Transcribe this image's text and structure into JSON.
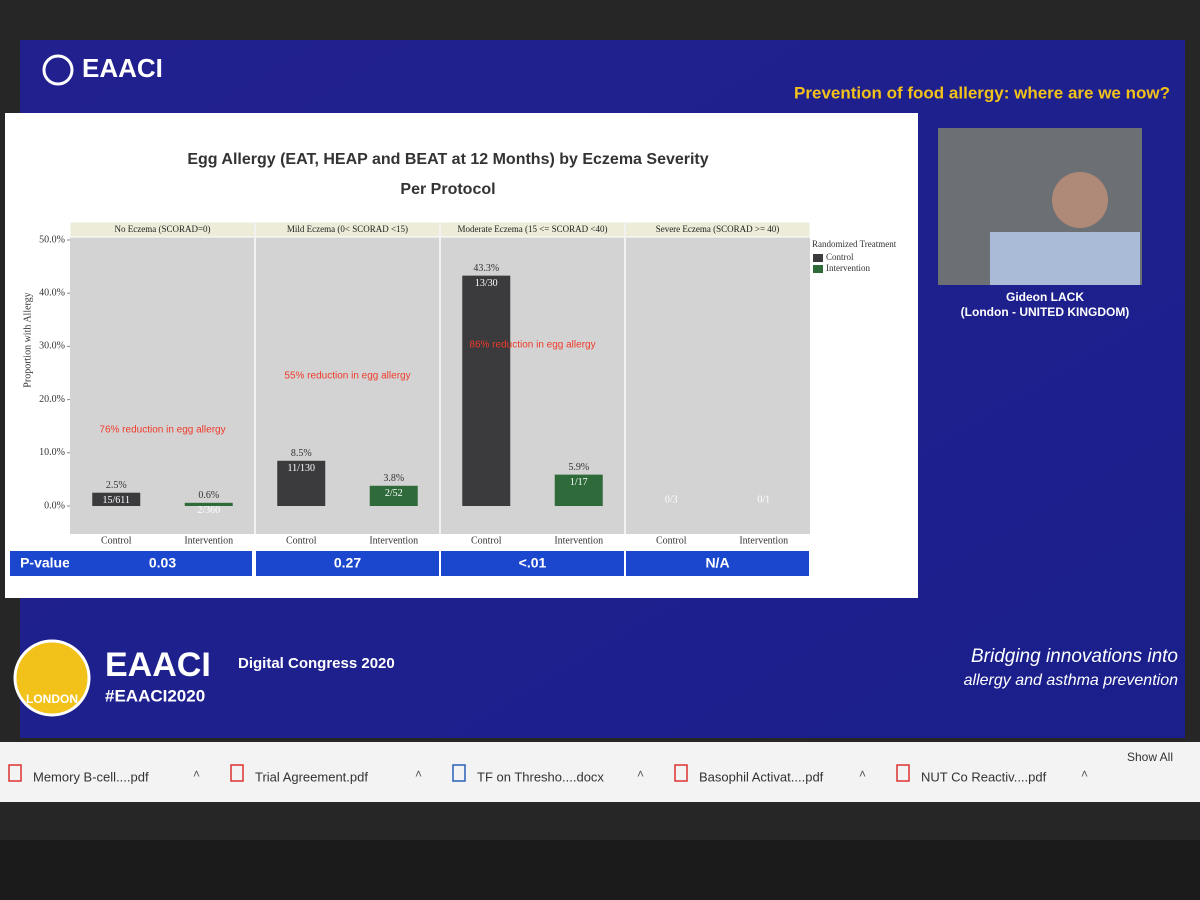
{
  "header": {
    "logo": "EAACI",
    "title": "Prevention of food allergy: where are we now?"
  },
  "chart_data": {
    "type": "bar",
    "title": "Egg Allergy (EAT, HEAP and BEAT at 12 Months) by Eczema Severity",
    "subtitle": "Per Protocol",
    "y_label": "Proportion with Allergy",
    "ylim": [
      0,
      50
    ],
    "yticks": [
      {
        "value": 0,
        "label": "0.0%"
      },
      {
        "value": 10,
        "label": "10.0%"
      },
      {
        "value": 20,
        "label": "20.0%"
      },
      {
        "value": 30,
        "label": "30.0%"
      },
      {
        "value": 40,
        "label": "40.0%"
      },
      {
        "value": 50,
        "label": "50.0%"
      }
    ],
    "legend_title": "Randomized Treatment",
    "series": [
      {
        "name": "Control",
        "color": "#3b3b3d"
      },
      {
        "name": "Intervention",
        "color": "#2f6b3a"
      }
    ],
    "categories": [
      "Control",
      "Intervention"
    ],
    "panels": [
      {
        "name": "No Eczema   (SCORAD=0)",
        "values": [
          2.5,
          0.6
        ],
        "value_labels": [
          "2.5%",
          "0.6%"
        ],
        "count_labels": [
          "15/611",
          "2/360"
        ],
        "annotation": "76% reduction in egg allergy",
        "p_value": "0.03"
      },
      {
        "name": "Mild Eczema (0< SCORAD <15)",
        "values": [
          8.5,
          3.8
        ],
        "value_labels": [
          "8.5%",
          "3.8%"
        ],
        "count_labels": [
          "11/130",
          "2/52"
        ],
        "annotation": "55% reduction in egg allergy",
        "p_value": "0.27"
      },
      {
        "name": "Moderate Eczema (15 <= SCORAD <40)",
        "values": [
          43.3,
          5.9
        ],
        "value_labels": [
          "43.3%",
          "5.9%"
        ],
        "count_labels": [
          "13/30",
          "1/17"
        ],
        "annotation": "86% reduction in egg allergy",
        "p_value": "<.01"
      },
      {
        "name": "Severe Eczema (SCORAD >= 40)",
        "values": [
          0,
          0
        ],
        "value_labels": [
          null,
          null
        ],
        "count_labels": [
          "0/3",
          "0/1"
        ],
        "p_value": "N/A"
      }
    ],
    "p_value_label": "P-value"
  },
  "speaker": {
    "name": "Gideon LACK",
    "location": "(London - UNITED KINGDOM)"
  },
  "footer": {
    "brand": "EAACI",
    "event": "Digital Congress 2020",
    "hashtag": "#EAACI2020",
    "badge": "LONDON",
    "tagline_1": "Bridging innovations into",
    "tagline_2": "allergy and asthma prevention"
  },
  "downloads": [
    "Memory B-cell....pdf",
    "Trial Agreement.pdf",
    "TF on Thresho....docx",
    "Basophil Activat....pdf",
    "NUT Co Reactiv....pdf"
  ],
  "show_all": "Show All"
}
